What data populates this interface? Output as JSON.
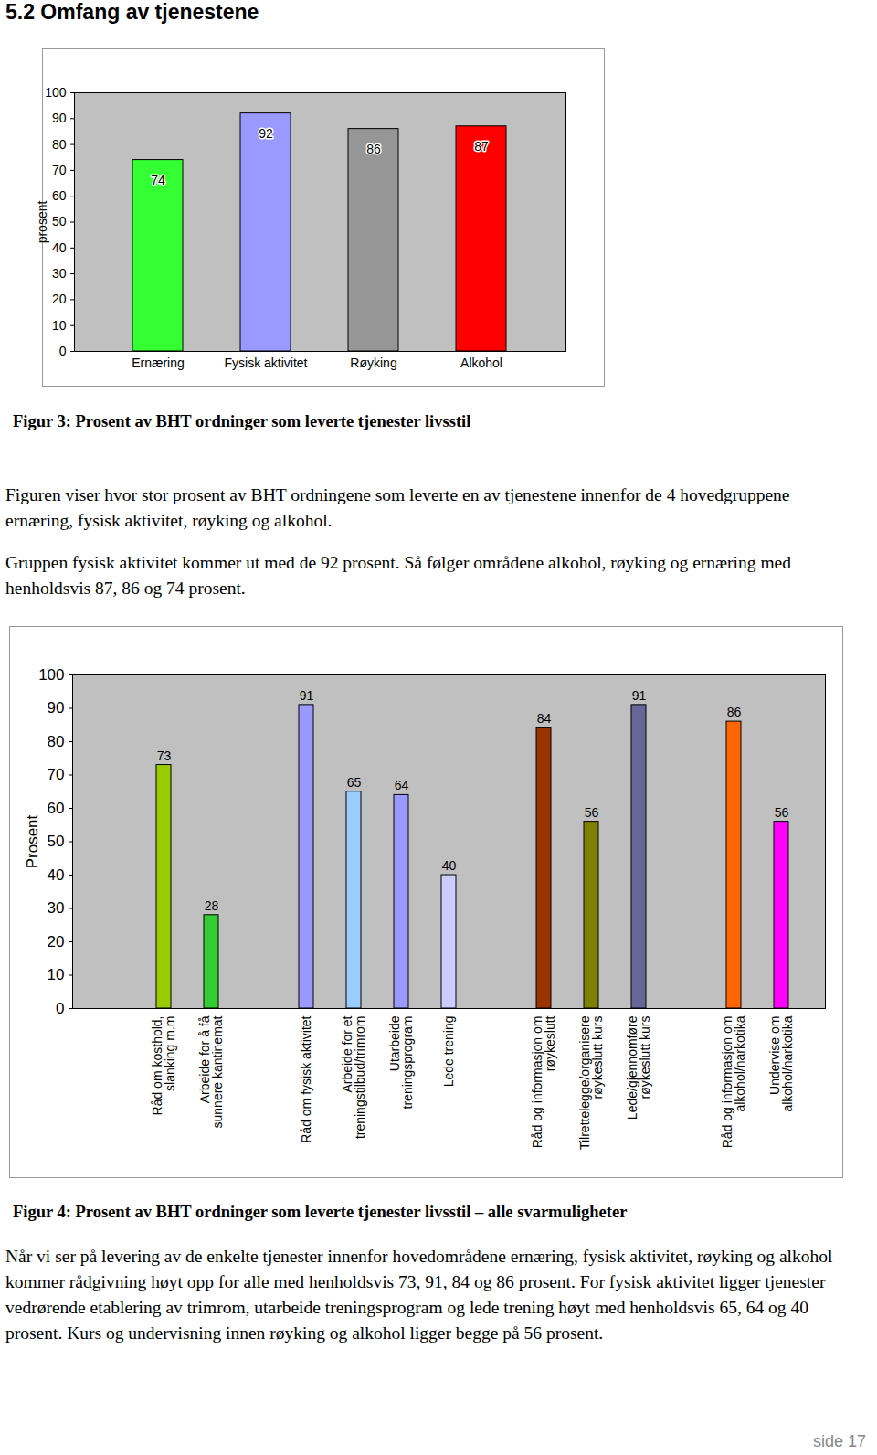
{
  "document": {
    "heading": "5.2 Omfang av tjenestene",
    "sections": [
      {
        "caption": "Figur 3: Prosent av BHT ordninger som leverte tjenester livsstil",
        "paragraphs": [
          "Figuren viser hvor stor prosent av BHT ordningene som leverte en av tjenestene innenfor de 4 hovedgruppene ernæring, fysisk aktivitet, røyking og alkohol.",
          "Gruppen fysisk aktivitet kommer ut med de 92 prosent. Så følger områdene alkohol, røyking og ernæring med henholdsvis 87, 86 og 74 prosent."
        ]
      },
      {
        "caption": "Figur 4: Prosent av BHT ordninger som leverte tjenester livsstil – alle svarmuligheter",
        "paragraphs": [
          "Når vi ser på levering av de enkelte tjenester innenfor hovedområdene ernæring, fysisk aktivitet, røyking og alkohol kommer rådgivning høyt opp for alle med henholdsvis 73, 91, 84 og 86 prosent. For fysisk aktivitet ligger tjenester vedrørende etablering av trimrom, utarbeide treningsprogram og lede trening høyt med henholdsvis 65, 64 og 40 prosent. Kurs og undervisning innen røyking og alkohol ligger begge på 56 prosent."
        ]
      }
    ],
    "page": "side 17"
  },
  "chart_data": [
    {
      "type": "bar",
      "y_label": "prosent",
      "categories": [
        "Ernæring",
        "Fysisk aktivitet",
        "Røyking",
        "Alkohol"
      ],
      "values": [
        74,
        92,
        86,
        87
      ],
      "colors": [
        "#33ff33",
        "#9999ff",
        "#969696",
        "#ff0000"
      ],
      "ylim": [
        0,
        100
      ],
      "yticks": [
        0,
        10,
        20,
        30,
        40,
        50,
        60,
        70,
        80,
        90,
        100
      ],
      "grid": false,
      "data_labels": true
    },
    {
      "type": "bar",
      "y_label": "Prosent",
      "categories": [
        null,
        "Råd om kosthold,\nslanking m.m",
        "Arbeide for å få\nsunnere kantinemat",
        null,
        "Råd om fysisk aktivitet",
        "Arbeide for et\ntreningstilbud/trimrom",
        "Utarbeide\ntreningsprogram",
        "Lede trening",
        null,
        "Råd og informasjon om\nrøykeslutt",
        "Tilrettelegge/organisere\nrøykeslutt kurs",
        "Lede/gjennomføre\nrøykeslutt kurs",
        null,
        "Råd og informasjon om\nalkohol/narkotika",
        "Undervise om\nalkohol/narkotika"
      ],
      "values": [
        null,
        73,
        28,
        null,
        91,
        65,
        64,
        40,
        null,
        84,
        56,
        91,
        null,
        86,
        56
      ],
      "colors": [
        null,
        "#99cc00",
        "#33cc33",
        null,
        "#9999ff",
        "#99ccff",
        "#9999ff",
        "#ccccff",
        null,
        "#993300",
        "#808000",
        "#666699",
        null,
        "#ff6600",
        "#ff00ff"
      ],
      "ylim": [
        0,
        100
      ],
      "yticks": [
        0,
        10,
        20,
        30,
        40,
        50,
        60,
        70,
        80,
        90,
        100
      ],
      "grid": false,
      "data_labels": true
    }
  ]
}
